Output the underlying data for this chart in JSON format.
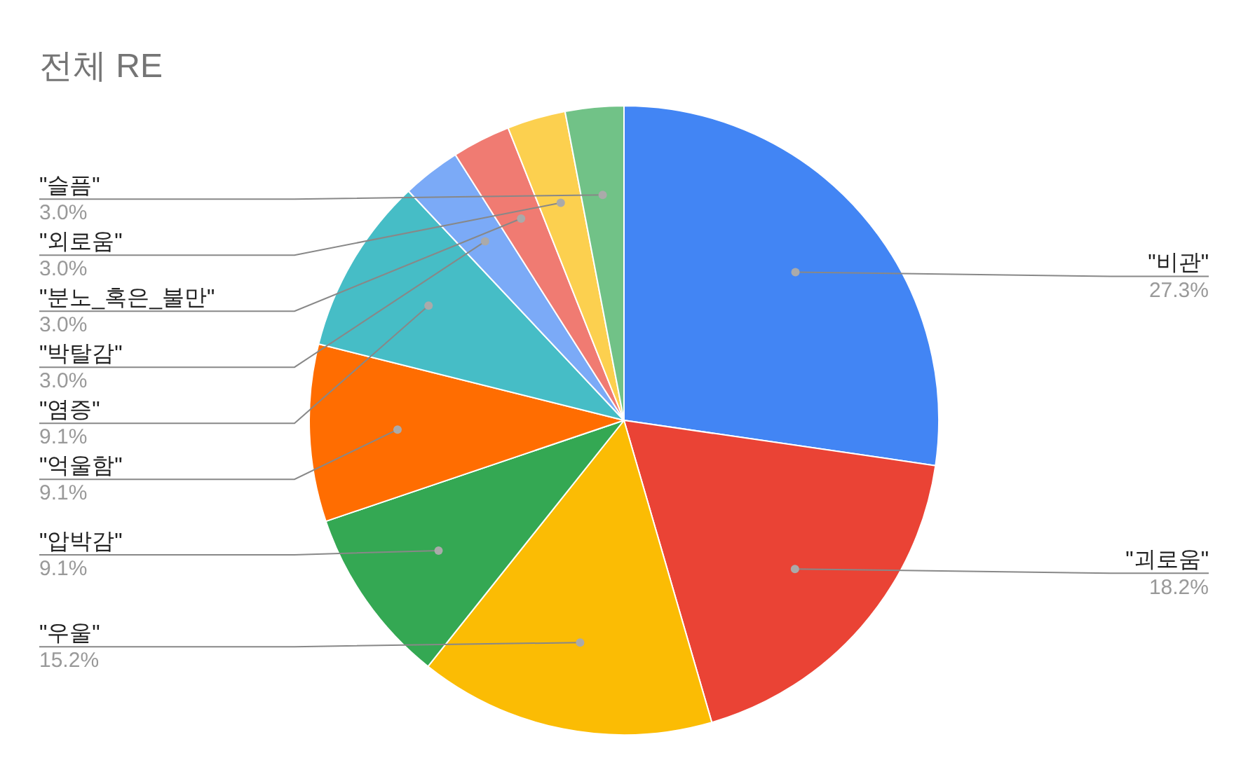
{
  "chart_data": {
    "type": "pie",
    "title": "전체 RE",
    "categories": [
      "\"비관\"",
      "\"괴로움\"",
      "\"우울\"",
      "\"압박감\"",
      "\"억울함\"",
      "\"염증\"",
      "\"박탈감\"",
      "\"분노_혹은_불만\"",
      "\"외로움\"",
      "\"슬픔\""
    ],
    "values": [
      27.3,
      18.2,
      15.2,
      9.1,
      9.1,
      9.1,
      3.0,
      3.0,
      3.0,
      3.0
    ],
    "value_labels": [
      "27.3%",
      "18.2%",
      "15.2%",
      "9.1%",
      "9.1%",
      "9.1%",
      "3.0%",
      "3.0%",
      "3.0%",
      "3.0%"
    ],
    "colors": [
      "#4285f4",
      "#ea4335",
      "#fbbc04",
      "#34a853",
      "#ff6d01",
      "#46bdc6",
      "#7baaf7",
      "#f07b72",
      "#fcd04f",
      "#71c287"
    ],
    "legend": false
  }
}
